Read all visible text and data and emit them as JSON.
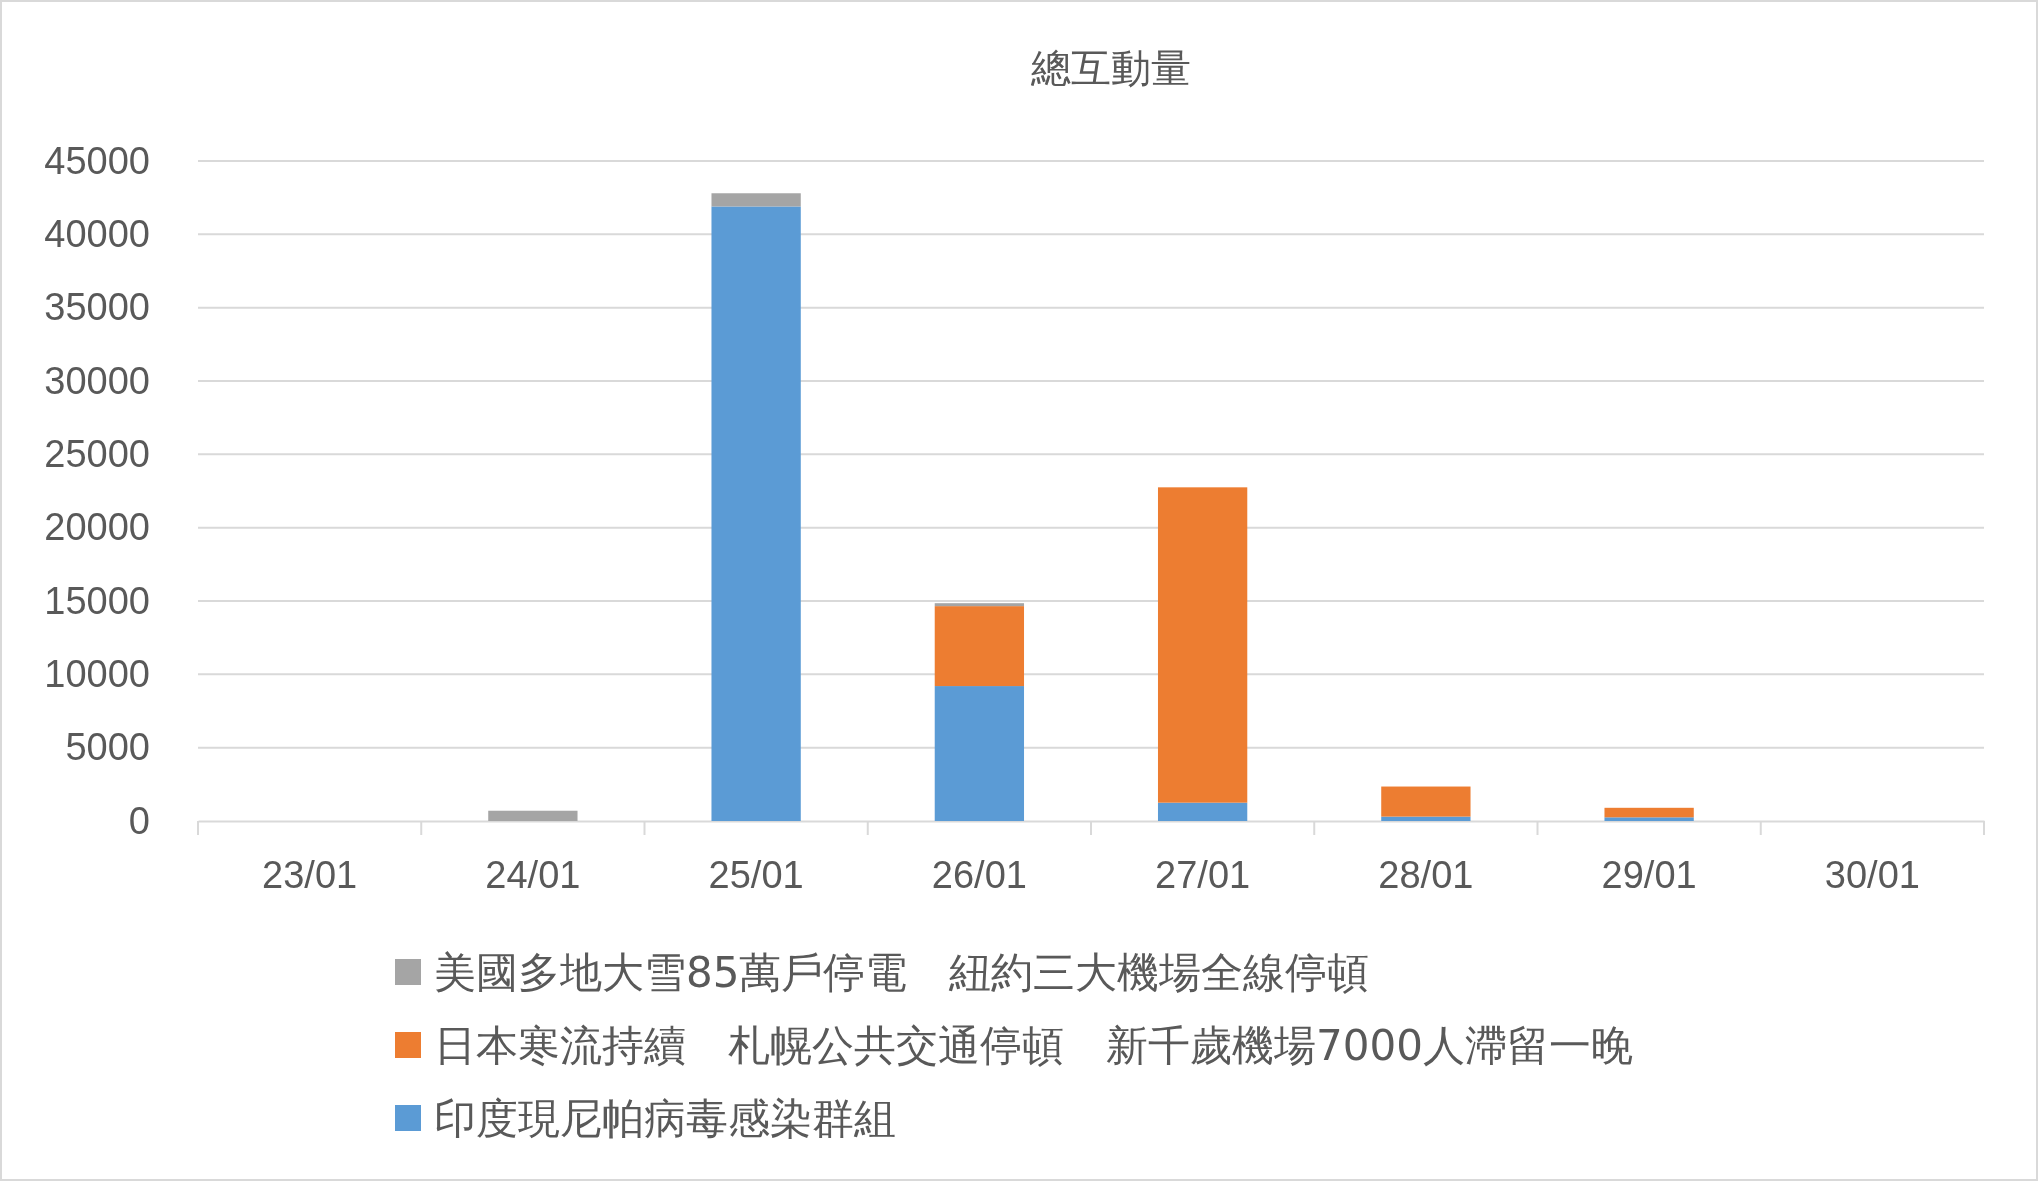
{
  "chart_data": {
    "type": "bar",
    "title": "總互動量",
    "stacked": true,
    "categories": [
      "23/01",
      "24/01",
      "25/01",
      "26/01",
      "27/01",
      "28/01",
      "29/01",
      "30/01"
    ],
    "series": [
      {
        "name": "印度現尼帕病毒感染群組",
        "color": "#5b9bd5",
        "values": [
          0,
          0,
          41900,
          9200,
          1250,
          300,
          250,
          0
        ]
      },
      {
        "name": "日本寒流持續　札幌公共交通停頓　新千歲機場7000人滯留一晚",
        "color": "#ed7d31",
        "values": [
          0,
          0,
          0,
          5450,
          21500,
          2050,
          650,
          0
        ]
      },
      {
        "name": "美國多地大雪85萬戶停電　紐約三大機場全線停頓",
        "color": "#a5a5a5",
        "values": [
          0,
          700,
          900,
          200,
          null,
          0,
          null,
          0
        ]
      }
    ],
    "ylim": [
      0,
      45000
    ],
    "yticks": [
      0,
      5000,
      10000,
      15000,
      20000,
      25000,
      30000,
      35000,
      40000,
      45000
    ],
    "grid": "y",
    "legend": "bottom"
  }
}
